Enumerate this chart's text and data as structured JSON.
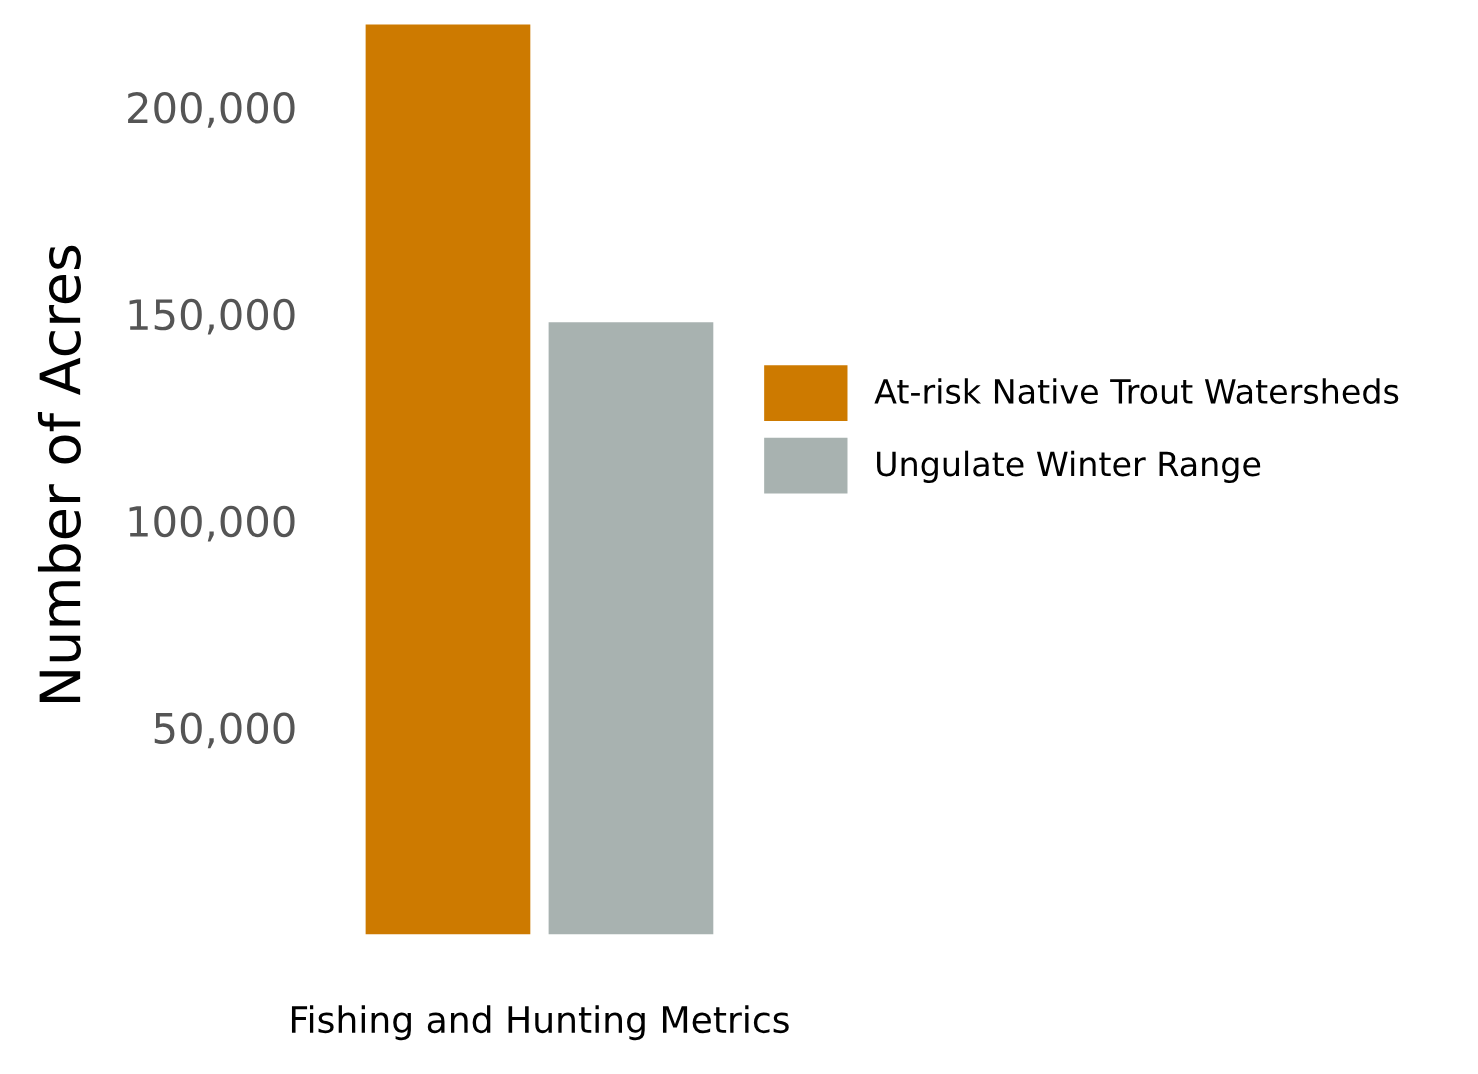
{
  "chart_data": {
    "type": "bar",
    "xlabel": "Fishing and Hunting Metrics",
    "ylabel": "Number of Acres",
    "categories": [
      null
    ],
    "series": [
      {
        "name": "At-risk Native Trout Watersheds",
        "color": "#cd7a00",
        "values": [
          220000
        ]
      },
      {
        "name": "Ungulate Winter Range",
        "color": "#a8b2b0",
        "values": [
          148000
        ]
      }
    ],
    "ylim": [
      0,
      222000
    ],
    "yticks": [
      {
        "value": 50000,
        "label": "50,000"
      },
      {
        "value": 100000,
        "label": "100,000"
      },
      {
        "value": 150000,
        "label": "150,000"
      },
      {
        "value": 200000,
        "label": "200,000"
      }
    ],
    "grid": false,
    "legend": "right"
  }
}
